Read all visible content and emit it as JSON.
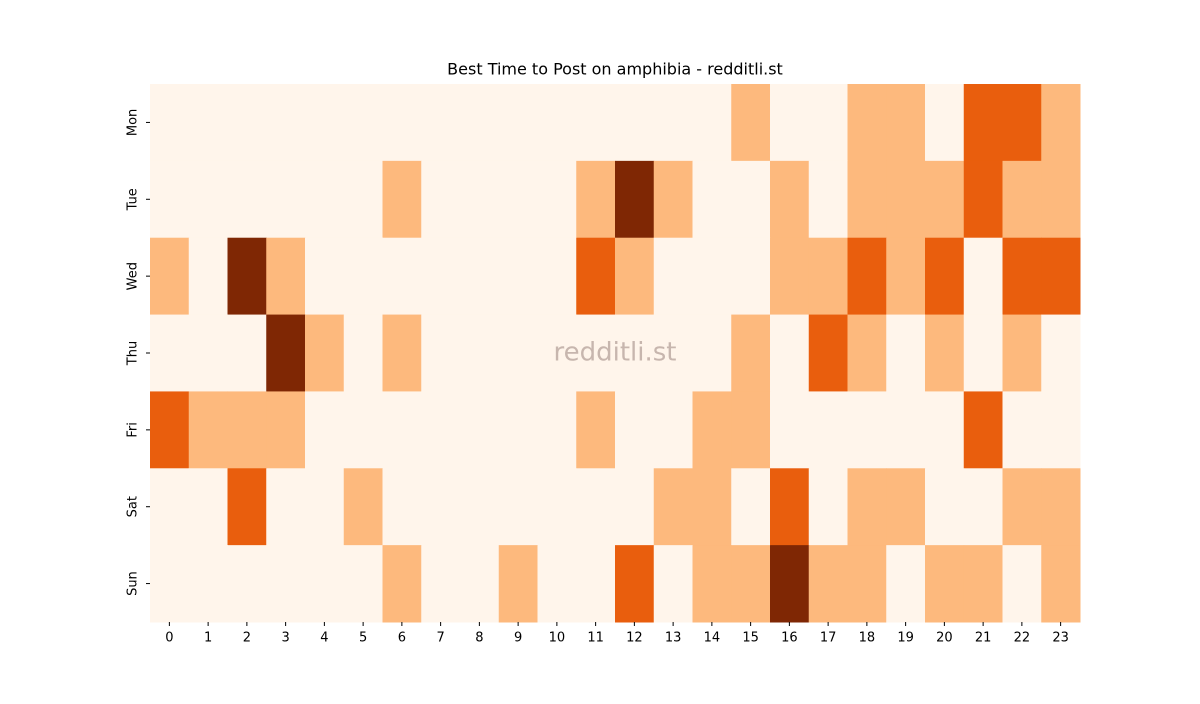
{
  "chart_data": {
    "type": "heatmap",
    "title": "Best Time to Post on amphibia - redditli.st",
    "annotation": "redditli.st",
    "x_categories": [
      0,
      1,
      2,
      3,
      4,
      5,
      6,
      7,
      8,
      9,
      10,
      11,
      12,
      13,
      14,
      15,
      16,
      17,
      18,
      19,
      20,
      21,
      22,
      23
    ],
    "y_categories": [
      "Mon",
      "Tue",
      "Wed",
      "Thu",
      "Fri",
      "Sat",
      "Sun"
    ],
    "values": [
      [
        0,
        0,
        0,
        0,
        0,
        0,
        0,
        0,
        0,
        0,
        0,
        0,
        0,
        0,
        0,
        1,
        0,
        0,
        1,
        1,
        0,
        2,
        2,
        1
      ],
      [
        0,
        0,
        0,
        0,
        0,
        0,
        1,
        0,
        0,
        0,
        0,
        1,
        3,
        1,
        0,
        0,
        1,
        0,
        1,
        1,
        1,
        2,
        1,
        1
      ],
      [
        1,
        0,
        3,
        1,
        0,
        0,
        0,
        0,
        0,
        0,
        0,
        2,
        1,
        0,
        0,
        0,
        1,
        1,
        2,
        1,
        2,
        0,
        2,
        2
      ],
      [
        0,
        0,
        0,
        3,
        1,
        0,
        1,
        0,
        0,
        0,
        0,
        0,
        0,
        0,
        0,
        1,
        0,
        2,
        1,
        0,
        1,
        0,
        1,
        0
      ],
      [
        2,
        1,
        1,
        1,
        0,
        0,
        0,
        0,
        0,
        0,
        0,
        1,
        0,
        0,
        1,
        1,
        0,
        0,
        0,
        0,
        0,
        2,
        0,
        0
      ],
      [
        0,
        0,
        2,
        0,
        0,
        1,
        0,
        0,
        0,
        0,
        0,
        0,
        0,
        1,
        1,
        0,
        2,
        0,
        1,
        1,
        0,
        0,
        1,
        1
      ],
      [
        0,
        0,
        0,
        0,
        0,
        0,
        1,
        0,
        0,
        1,
        0,
        0,
        2,
        0,
        1,
        1,
        3,
        1,
        1,
        0,
        1,
        1,
        0,
        1
      ]
    ],
    "zlim": [
      0,
      3
    ],
    "colormap": [
      "#fff5eb",
      "#fdb97d",
      "#e95e0d",
      "#7f2704"
    ]
  }
}
